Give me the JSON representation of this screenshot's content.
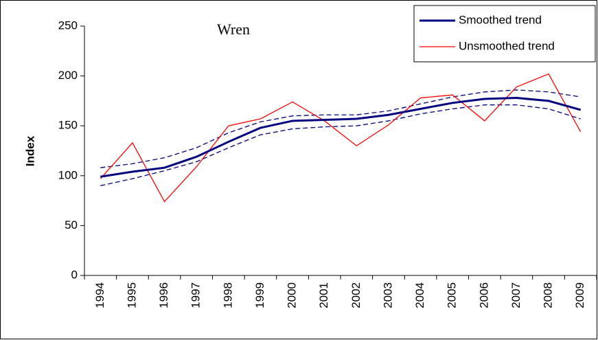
{
  "chart_data": {
    "type": "line",
    "title": "Wren",
    "y_label": "Index",
    "categories": [
      "1994",
      "1995",
      "1996",
      "1997",
      "1998",
      "1999",
      "2000",
      "2001",
      "2002",
      "2003",
      "2004",
      "2005",
      "2006",
      "2007",
      "2008",
      "2009"
    ],
    "series": [
      {
        "name": "Smoothed trend",
        "color": "#000080",
        "width": 3,
        "values": [
          99,
          104,
          108,
          119,
          134,
          148,
          155,
          156,
          157,
          161,
          167,
          173,
          177,
          178,
          175,
          166
        ]
      },
      {
        "name": "Unsmoothed trend",
        "color": "#ff0000",
        "width": 1.3,
        "values": [
          97,
          133,
          74,
          109,
          150,
          157,
          174,
          155,
          130,
          151,
          178,
          181,
          155,
          189,
          202,
          144
        ]
      },
      {
        "color": "#000080",
        "width": 1.3,
        "dashed": true,
        "values": [
          108,
          112,
          118,
          128,
          143,
          154,
          160,
          161,
          161,
          165,
          172,
          179,
          184,
          186,
          184,
          179
        ]
      },
      {
        "color": "#000080",
        "width": 1.3,
        "dashed": true,
        "values": [
          90,
          97,
          105,
          114,
          128,
          141,
          147,
          149,
          150,
          155,
          162,
          167,
          171,
          171,
          167,
          157
        ]
      }
    ],
    "ylim": [
      0,
      250
    ],
    "yticks": [
      0,
      50,
      100,
      150,
      200,
      250
    ],
    "grid": false,
    "legend": "upper right"
  }
}
